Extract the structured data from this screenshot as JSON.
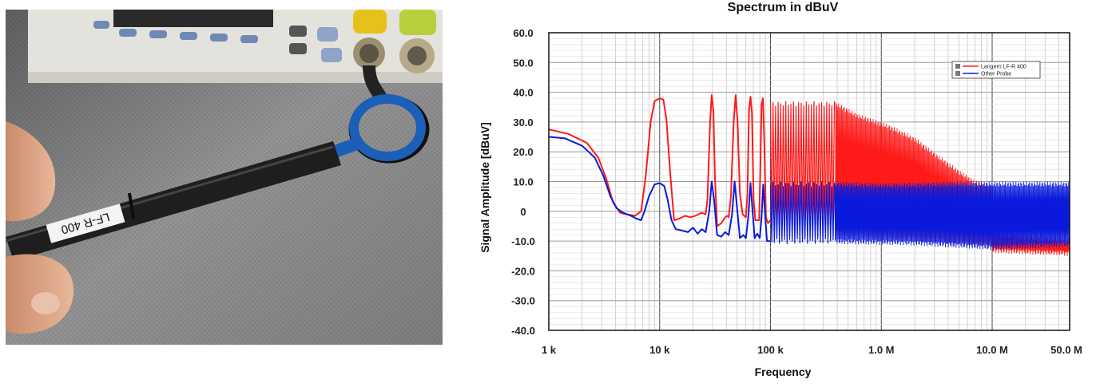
{
  "photo": {
    "probe_label": "LF-R 400"
  },
  "colors": {
    "series_red": "#ff1a1a",
    "series_blue": "#0a1adc",
    "grid_minor": "#c8c8c8",
    "grid_major": "#444444"
  },
  "chart_data": {
    "type": "line",
    "title": "Spectrum in dBuV",
    "xlabel": "Frequency",
    "ylabel": "Signal Amplitude [dBuV]",
    "x_scale": "log",
    "xlim": [
      1000,
      50000000
    ],
    "ylim": [
      -40,
      60
    ],
    "grid": true,
    "legend_position": "top-right",
    "x_ticks": [
      {
        "value": 1000,
        "label": "1   k"
      },
      {
        "value": 10000,
        "label": "10  k"
      },
      {
        "value": 100000,
        "label": "100 k"
      },
      {
        "value": 1000000,
        "label": "1.0 M"
      },
      {
        "value": 10000000,
        "label": "10.0 M"
      },
      {
        "value": 50000000,
        "label": "50.0 M"
      }
    ],
    "y_ticks": [
      {
        "value": 60,
        "label": "60.0"
      },
      {
        "value": 50,
        "label": "50.0"
      },
      {
        "value": 40,
        "label": "40.0"
      },
      {
        "value": 30,
        "label": "30.0"
      },
      {
        "value": 20,
        "label": "20.0"
      },
      {
        "value": 10,
        "label": "10.0"
      },
      {
        "value": 0,
        "label": "0"
      },
      {
        "value": -10,
        "label": "-10.0"
      },
      {
        "value": -20,
        "label": "-20.0"
      },
      {
        "value": -30,
        "label": "-30.0"
      },
      {
        "value": -40,
        "label": "-40.0"
      }
    ],
    "series": [
      {
        "name": "Langern LF-R 400",
        "color": "#ff1a1a",
        "lines": [
          [
            [
              1000,
              27.5
            ],
            [
              1500,
              26
            ],
            [
              2200,
              23
            ],
            [
              2800,
              18
            ],
            [
              3300,
              11
            ],
            [
              3800,
              3
            ],
            [
              4400,
              -0.5
            ],
            [
              5000,
              -1
            ],
            [
              6000,
              -1.5
            ],
            [
              6800,
              0
            ],
            [
              7500,
              12
            ],
            [
              8300,
              30
            ],
            [
              9000,
              37
            ],
            [
              10000,
              38
            ],
            [
              10800,
              37.5
            ],
            [
              11500,
              31
            ],
            [
              12500,
              12
            ],
            [
              13500,
              -3
            ],
            [
              15000,
              -2.5
            ],
            [
              17000,
              -1.5
            ],
            [
              19000,
              -2
            ],
            [
              21000,
              -1.5
            ],
            [
              24000,
              -0.5
            ],
            [
              26000,
              -1
            ],
            [
              27000,
              4
            ],
            [
              28500,
              30
            ],
            [
              29500,
              39
            ],
            [
              30500,
              34
            ],
            [
              31500,
              12
            ],
            [
              33000,
              -5
            ],
            [
              36000,
              -4
            ],
            [
              39000,
              -2
            ],
            [
              41000,
              -1.5
            ],
            [
              42000,
              -2
            ],
            [
              44000,
              5
            ],
            [
              46500,
              30
            ],
            [
              48500,
              39
            ],
            [
              50500,
              30
            ],
            [
              53000,
              6
            ],
            [
              56000,
              -1
            ],
            [
              60000,
              -2
            ],
            [
              62000,
              6
            ],
            [
              64000,
              34
            ],
            [
              66000,
              38.5
            ],
            [
              68000,
              33
            ],
            [
              70500,
              4
            ],
            [
              73000,
              -3
            ],
            [
              79000,
              -3
            ],
            [
              81000,
              14
            ],
            [
              83000,
              36
            ],
            [
              85500,
              38
            ],
            [
              88000,
              23
            ],
            [
              91000,
              -2
            ],
            [
              95000,
              -4
            ],
            [
              100000,
              -3
            ]
          ]
        ],
        "bands": [
          {
            "x": [
              100000,
              380000
            ],
            "top": 37,
            "bottom": -6
          },
          {
            "x": [
              380000,
              10000000
            ],
            "top_points": [
              [
                380000,
                37
              ],
              [
                600000,
                33
              ],
              [
                1200000,
                29
              ],
              [
                2000000,
                25
              ],
              [
                3000000,
                20
              ],
              [
                5000000,
                14
              ],
              [
                7000000,
                10.5
              ],
              [
                10000000,
                9
              ]
            ],
            "bottom_points": [
              [
                380000,
                -8
              ],
              [
                2000000,
                -10
              ],
              [
                5000000,
                -11
              ],
              [
                10000000,
                -12.5
              ]
            ]
          },
          {
            "x": [
              10000000,
              50000000
            ],
            "top_points": [
              [
                10000000,
                -7
              ],
              [
                20000000,
                -8
              ],
              [
                50000000,
                -9
              ]
            ],
            "bottom_points": [
              [
                10000000,
                -14
              ],
              [
                20000000,
                -14.5
              ],
              [
                50000000,
                -15
              ]
            ]
          }
        ]
      },
      {
        "name": "Other Probe",
        "color": "#0a1adc",
        "lines": [
          [
            [
              1000,
              25
            ],
            [
              1400,
              24.5
            ],
            [
              2000,
              22
            ],
            [
              2600,
              18
            ],
            [
              3100,
              12
            ],
            [
              3600,
              5
            ],
            [
              4100,
              1
            ],
            [
              4700,
              -0.5
            ],
            [
              5500,
              -1.5
            ],
            [
              6200,
              -2.5
            ],
            [
              6800,
              -3
            ],
            [
              7300,
              0
            ],
            [
              8000,
              5
            ],
            [
              9000,
              9
            ],
            [
              10000,
              9.5
            ],
            [
              11000,
              8.5
            ],
            [
              11800,
              4
            ],
            [
              12800,
              -3
            ],
            [
              14000,
              -6
            ],
            [
              16000,
              -6.5
            ],
            [
              18000,
              -7
            ],
            [
              20000,
              -5.5
            ],
            [
              22000,
              -7.5
            ],
            [
              24000,
              -6
            ],
            [
              26000,
              -7
            ],
            [
              28000,
              0
            ],
            [
              29500,
              10
            ],
            [
              31000,
              4
            ],
            [
              33000,
              -8
            ],
            [
              36000,
              -8.5
            ],
            [
              39000,
              -7
            ],
            [
              42000,
              -8
            ],
            [
              45000,
              -1
            ],
            [
              47500,
              10
            ],
            [
              50000,
              1
            ],
            [
              53000,
              -9
            ],
            [
              57000,
              -8
            ],
            [
              60000,
              -9
            ],
            [
              63000,
              -2
            ],
            [
              66000,
              9.5
            ],
            [
              69000,
              0
            ],
            [
              72000,
              -9
            ],
            [
              76000,
              -7.5
            ],
            [
              80000,
              -9
            ],
            [
              83000,
              -2
            ],
            [
              86000,
              9
            ],
            [
              89000,
              0
            ],
            [
              93000,
              -10
            ],
            [
              100000,
              -10
            ]
          ]
        ],
        "bands": [
          {
            "x": [
              100000,
              380000
            ],
            "top": 10,
            "bottom": -11
          },
          {
            "x": [
              380000,
              50000000
            ],
            "top_points": [
              [
                380000,
                10
              ],
              [
                1000000,
                9.5
              ],
              [
                5000000,
                10
              ],
              [
                10000000,
                10
              ],
              [
                50000000,
                10
              ]
            ],
            "bottom_points": [
              [
                380000,
                -11
              ],
              [
                2000000,
                -11.5
              ],
              [
                10000000,
                -13
              ],
              [
                50000000,
                -12
              ]
            ]
          }
        ]
      }
    ]
  }
}
